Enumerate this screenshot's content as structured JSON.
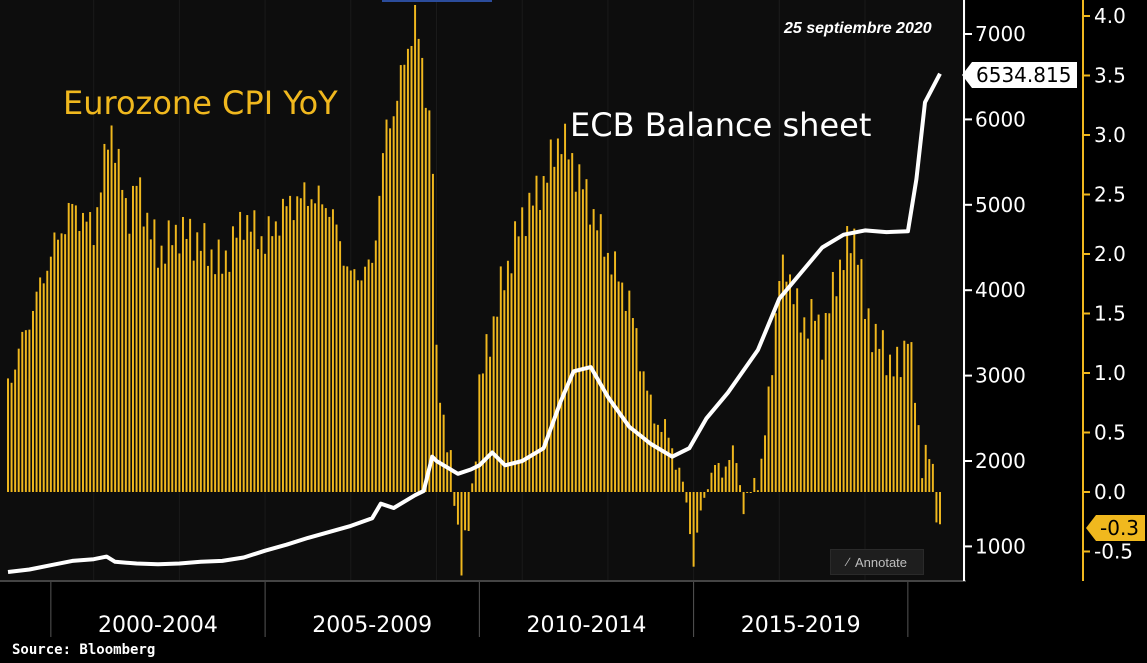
{
  "chart_data": {
    "type": "bar",
    "title": "",
    "annotations": [
      "Eurozone CPI YoY",
      "ECB Balance sheet",
      "25 septiembre 2020"
    ],
    "x_period_labels": [
      "2000-2004",
      "2005-2009",
      "2010-2014",
      "2015-2019"
    ],
    "x_range": [
      1999.0,
      2020.75
    ],
    "source": "Source: Bloomberg",
    "annotate_button": "Annotate",
    "colors": {
      "cpi_bars": "#f0b81e",
      "balance_line": "#ffffff",
      "background": "#000000",
      "axis": "#ffffff"
    },
    "series": [
      {
        "name": "Eurozone CPI YoY",
        "type": "bar",
        "axis": "right",
        "ylim": [
          -0.65,
          4.1
        ],
        "ticks": [
          "4.0",
          "3.5",
          "3.0",
          "2.5",
          "2.0",
          "1.5",
          "1.0",
          "0.5",
          "0.0",
          "-0.5"
        ],
        "last_value_label": "-0.3",
        "points": [
          [
            1999.0,
            0.9
          ],
          [
            2000.0,
            2.0
          ],
          [
            2000.5,
            2.4
          ],
          [
            2001.0,
            2.2
          ],
          [
            2001.4,
            3.1
          ],
          [
            2001.8,
            2.3
          ],
          [
            2002.0,
            2.6
          ],
          [
            2002.5,
            2.0
          ],
          [
            2003.0,
            2.2
          ],
          [
            2003.5,
            2.1
          ],
          [
            2004.0,
            1.9
          ],
          [
            2004.5,
            2.3
          ],
          [
            2005.0,
            2.1
          ],
          [
            2005.5,
            2.4
          ],
          [
            2006.0,
            2.5
          ],
          [
            2006.5,
            2.4
          ],
          [
            2007.0,
            1.8
          ],
          [
            2007.5,
            1.9
          ],
          [
            2007.8,
            3.0
          ],
          [
            2008.0,
            3.2
          ],
          [
            2008.5,
            4.0
          ],
          [
            2008.9,
            3.0
          ],
          [
            2009.0,
            1.1
          ],
          [
            2009.4,
            0.0
          ],
          [
            2009.6,
            -0.6
          ],
          [
            2009.8,
            -0.2
          ],
          [
            2010.0,
            0.9
          ],
          [
            2010.5,
            1.7
          ],
          [
            2011.0,
            2.3
          ],
          [
            2011.5,
            2.6
          ],
          [
            2011.9,
            3.0
          ],
          [
            2012.5,
            2.5
          ],
          [
            2013.0,
            2.0
          ],
          [
            2013.5,
            1.6
          ],
          [
            2014.0,
            0.7
          ],
          [
            2014.5,
            0.4
          ],
          [
            2014.9,
            -0.2
          ],
          [
            2015.0,
            -0.6
          ],
          [
            2015.3,
            0.1
          ],
          [
            2015.6,
            0.2
          ],
          [
            2016.0,
            0.3
          ],
          [
            2016.2,
            -0.2
          ],
          [
            2016.4,
            0.1
          ],
          [
            2016.6,
            0.2
          ],
          [
            2017.0,
            1.8
          ],
          [
            2017.2,
            1.9
          ],
          [
            2017.5,
            1.4
          ],
          [
            2017.8,
            1.5
          ],
          [
            2018.0,
            1.3
          ],
          [
            2018.4,
            1.9
          ],
          [
            2018.8,
            2.2
          ],
          [
            2019.0,
            1.5
          ],
          [
            2019.4,
            1.2
          ],
          [
            2019.8,
            1.0
          ],
          [
            2020.0,
            1.4
          ],
          [
            2020.3,
            0.3
          ],
          [
            2020.5,
            0.3
          ],
          [
            2020.75,
            -0.3
          ]
        ]
      },
      {
        "name": "ECB Balance sheet",
        "type": "line",
        "axis": "mid",
        "ylim": [
          640,
          7480
        ],
        "ticks": [
          "7000",
          "6000",
          "5000",
          "4000",
          "3000",
          "2000",
          "1000"
        ],
        "last_value_label": "6534.815",
        "points": [
          [
            1999.0,
            700
          ],
          [
            1999.5,
            730
          ],
          [
            2000.0,
            780
          ],
          [
            2000.5,
            830
          ],
          [
            2001.0,
            850
          ],
          [
            2001.3,
            880
          ],
          [
            2001.5,
            820
          ],
          [
            2002.0,
            800
          ],
          [
            2002.5,
            790
          ],
          [
            2003.0,
            800
          ],
          [
            2003.5,
            820
          ],
          [
            2004.0,
            830
          ],
          [
            2004.5,
            870
          ],
          [
            2005.0,
            950
          ],
          [
            2005.5,
            1020
          ],
          [
            2006.0,
            1100
          ],
          [
            2006.5,
            1170
          ],
          [
            2007.0,
            1240
          ],
          [
            2007.5,
            1330
          ],
          [
            2007.7,
            1500
          ],
          [
            2008.0,
            1450
          ],
          [
            2008.5,
            1600
          ],
          [
            2008.7,
            1650
          ],
          [
            2008.9,
            2050
          ],
          [
            2009.0,
            2000
          ],
          [
            2009.5,
            1850
          ],
          [
            2009.8,
            1900
          ],
          [
            2010.0,
            1950
          ],
          [
            2010.3,
            2100
          ],
          [
            2010.6,
            1950
          ],
          [
            2011.0,
            2000
          ],
          [
            2011.5,
            2150
          ],
          [
            2011.9,
            2700
          ],
          [
            2012.2,
            3050
          ],
          [
            2012.6,
            3100
          ],
          [
            2013.0,
            2750
          ],
          [
            2013.5,
            2400
          ],
          [
            2014.0,
            2200
          ],
          [
            2014.5,
            2050
          ],
          [
            2014.9,
            2150
          ],
          [
            2015.3,
            2500
          ],
          [
            2015.8,
            2800
          ],
          [
            2016.5,
            3300
          ],
          [
            2017.0,
            3900
          ],
          [
            2017.5,
            4200
          ],
          [
            2018.0,
            4500
          ],
          [
            2018.5,
            4650
          ],
          [
            2019.0,
            4700
          ],
          [
            2019.5,
            4680
          ],
          [
            2020.0,
            4690
          ],
          [
            2020.2,
            5300
          ],
          [
            2020.4,
            6200
          ],
          [
            2020.75,
            6534.815
          ]
        ]
      }
    ]
  }
}
